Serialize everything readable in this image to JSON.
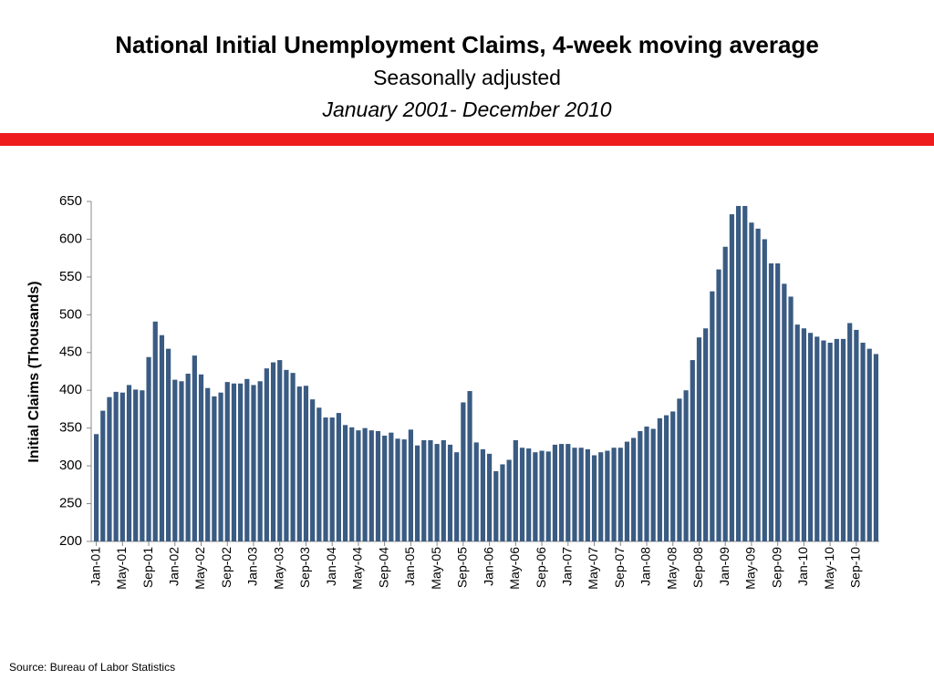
{
  "chart_data": {
    "type": "bar",
    "title": "National Initial Unemployment Claims, 4-week moving average",
    "subtitle": "Seasonally adjusted",
    "date_range": "January 2001- December 2010",
    "y_label": "Initial Claims (Thousands)",
    "source": "Source:  Bureau of Labor Statistics",
    "color": "#3a5b82",
    "categories": [
      "Jan-01",
      null,
      null,
      null,
      "May-01",
      null,
      null,
      null,
      "Sep-01",
      null,
      null,
      null,
      "Jan-02",
      null,
      null,
      null,
      "May-02",
      null,
      null,
      null,
      "Sep-02",
      null,
      null,
      null,
      "Jan-03",
      null,
      null,
      null,
      "May-03",
      null,
      null,
      null,
      "Sep-03",
      null,
      null,
      null,
      "Jan-04",
      null,
      null,
      null,
      "May-04",
      null,
      null,
      null,
      "Sep-04",
      null,
      null,
      null,
      "Jan-05",
      null,
      null,
      null,
      "May-05",
      null,
      null,
      null,
      "Sep-05",
      null,
      null,
      null,
      "Jan-06",
      null,
      null,
      null,
      "May-06",
      null,
      null,
      null,
      "Sep-06",
      null,
      null,
      null,
      "Jan-07",
      null,
      null,
      null,
      "May-07",
      null,
      null,
      null,
      "Sep-07",
      null,
      null,
      null,
      "Jan-08",
      null,
      null,
      null,
      "May-08",
      null,
      null,
      null,
      "Sep-08",
      null,
      null,
      null,
      "Jan-09",
      null,
      null,
      null,
      "May-09",
      null,
      null,
      null,
      "Sep-09",
      null,
      null,
      null,
      "Jan-10",
      null,
      null,
      null,
      "May-10",
      null,
      null,
      null,
      "Sep-10",
      null,
      null,
      null
    ],
    "values": [
      342,
      373,
      391,
      398,
      397,
      407,
      401,
      400,
      444,
      491,
      473,
      455,
      414,
      412,
      422,
      446,
      421,
      403,
      392,
      397,
      411,
      409,
      409,
      415,
      407,
      412,
      429,
      437,
      440,
      427,
      423,
      405,
      406,
      388,
      377,
      364,
      364,
      370,
      354,
      351,
      347,
      350,
      347,
      346,
      340,
      344,
      336,
      335,
      348,
      327,
      334,
      334,
      329,
      334,
      328,
      318,
      384,
      399,
      331,
      322,
      316,
      293,
      302,
      308,
      334,
      324,
      323,
      318,
      320,
      319,
      328,
      329,
      329,
      324,
      324,
      322,
      314,
      318,
      320,
      324,
      324,
      332,
      337,
      346,
      352,
      349,
      363,
      367,
      372,
      389,
      400,
      440,
      470,
      482,
      531,
      560,
      590,
      633,
      644,
      644,
      622,
      614,
      600,
      568,
      568,
      541,
      524,
      487,
      482,
      476,
      471,
      466,
      463,
      468,
      468,
      489,
      480,
      463,
      455,
      448
    ],
    "ylim": [
      200,
      650
    ],
    "yticks": [
      200,
      250,
      300,
      350,
      400,
      450,
      500,
      550,
      600,
      650
    ]
  }
}
